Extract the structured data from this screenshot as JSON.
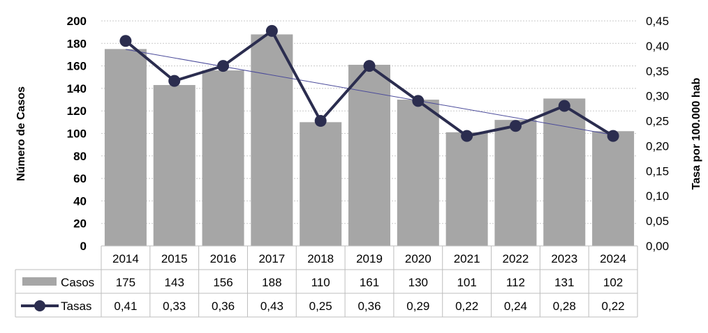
{
  "chart_data": {
    "type": "bar",
    "categories": [
      "2014",
      "2015",
      "2016",
      "2017",
      "2018",
      "2019",
      "2020",
      "2021",
      "2022",
      "2023",
      "2024"
    ],
    "series": [
      {
        "name": "Casos",
        "type": "bar",
        "axis": "left",
        "color": "#a6a6a6",
        "values": [
          175,
          143,
          156,
          188,
          110,
          161,
          130,
          101,
          112,
          131,
          102
        ],
        "labels": [
          "175",
          "143",
          "156",
          "188",
          "110",
          "161",
          "130",
          "101",
          "112",
          "131",
          "102"
        ]
      },
      {
        "name": "Tasas",
        "type": "line",
        "axis": "right",
        "color": "#2b2d4f",
        "values": [
          0.41,
          0.33,
          0.36,
          0.43,
          0.25,
          0.36,
          0.29,
          0.22,
          0.24,
          0.28,
          0.22
        ],
        "labels": [
          "0,41",
          "0,33",
          "0,36",
          "0,43",
          "0,25",
          "0,36",
          "0,29",
          "0,22",
          "0,24",
          "0,28",
          "0,22"
        ]
      }
    ],
    "trendline": {
      "color": "#4a4a9a",
      "start": 0.393,
      "end": 0.222
    },
    "ylabel": "Número de Casos",
    "y2label": "Tasa por 100.000 hab",
    "ylim": [
      0,
      200
    ],
    "y2lim": [
      0,
      0.45
    ],
    "yticks": [
      "0",
      "20",
      "40",
      "60",
      "80",
      "100",
      "120",
      "140",
      "160",
      "180",
      "200"
    ],
    "y2ticks": [
      "0,00",
      "0,05",
      "0,10",
      "0,15",
      "0,20",
      "0,25",
      "0,30",
      "0,35",
      "0,40",
      "0,45"
    ],
    "data_table": true,
    "grid": true
  }
}
